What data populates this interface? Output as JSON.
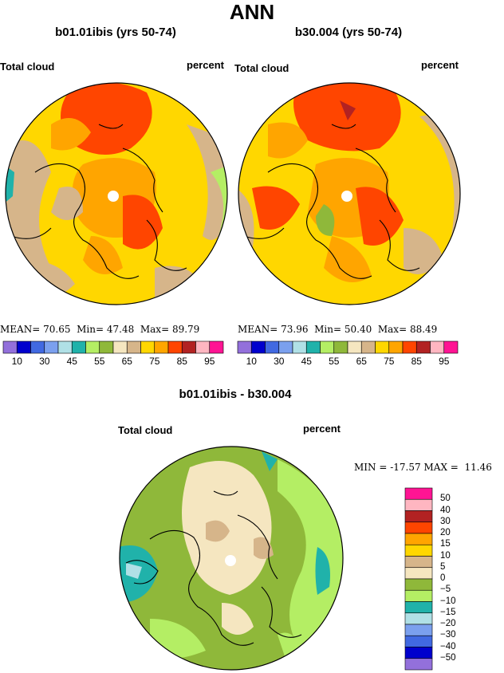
{
  "title": "ANN",
  "panels": [
    {
      "subtitle": "b01.01ibis (yrs 50-74)",
      "left_label": "Total cloud",
      "right_label": "percent",
      "stats": {
        "mean_label": "MEAN=",
        "mean": "70.65",
        "min_label": "Min=",
        "min": "47.48",
        "max_label": "Max=",
        "max": "89.79"
      }
    },
    {
      "subtitle": "b30.004 (yrs 50-74)",
      "left_label": "Total cloud",
      "right_label": "percent",
      "stats": {
        "mean_label": "MEAN=",
        "mean": "73.96",
        "min_label": "Min=",
        "min": "50.40",
        "max_label": "Max=",
        "max": "88.49"
      }
    }
  ],
  "colorbar": {
    "colors": [
      "#9370db",
      "#0000cd",
      "#4169e1",
      "#7ba0ee",
      "#b0e0e6",
      "#20b2aa",
      "#b4ee64",
      "#8fb83a",
      "#f5e6c0",
      "#d6b58a",
      "#ffd700",
      "#ffa500",
      "#ff4500",
      "#b22222",
      "#ffb6c1",
      "#ff1493"
    ],
    "tick_labels": [
      "10",
      "30",
      "45",
      "55",
      "65",
      "75",
      "85",
      "95"
    ]
  },
  "difference": {
    "subtitle": "b01.01ibis - b30.004",
    "left_label": "Total cloud",
    "right_label": "percent",
    "stats": {
      "min_label": "MIN =",
      "min": "-17.57",
      "max_label": "MAX =",
      "max": "11.46"
    },
    "legend": {
      "colors": [
        "#ff1493",
        "#ffb6c1",
        "#b22222",
        "#ff4500",
        "#ffa500",
        "#ffd700",
        "#d6b58a",
        "#f5e6c0",
        "#8fb83a",
        "#b4ee64",
        "#20b2aa",
        "#b0e0e6",
        "#7ba0ee",
        "#4169e1",
        "#0000cd",
        "#9370db"
      ],
      "labels": [
        "50",
        "40",
        "30",
        "20",
        "15",
        "10",
        "5",
        "0",
        "−5",
        "−10",
        "−15",
        "−20",
        "−30",
        "−40",
        "−50"
      ]
    }
  }
}
